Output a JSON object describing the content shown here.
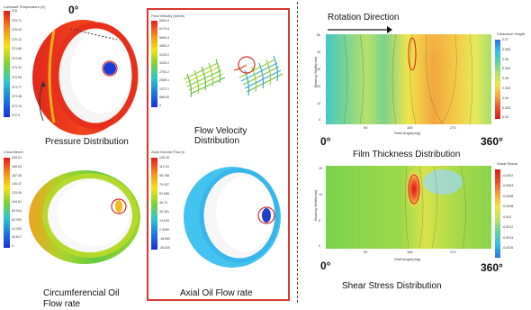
{
  "pressure": {
    "legend_title": "Lubricant Temperature (K)",
    "legend_values": [
      "376",
      "375.71",
      "375.42",
      "375.13",
      "374.86",
      "374.56",
      "374.31",
      "374.05",
      "373.77",
      "373.48",
      "373.19",
      "372.9"
    ],
    "zero_label": "0°",
    "caption": "Pressure Distribution"
  },
  "velocity": {
    "legend_title": "Flow Velocity (mm/s)",
    "legend_values": [
      "6500.0",
      "6174.4",
      "5694.4",
      "4953.2",
      "4193.2",
      "3439.2",
      "2751.2",
      "2089.1",
      "1372.1",
      "688.05",
      "0"
    ],
    "caption": "Flow Velocity Distribution"
  },
  "circumferential": {
    "legend_title": "Circumferen",
    "legend_values": [
      "208.01",
      "189.53",
      "167.05",
      "145.37",
      "125.09",
      "104.61",
      "83.034",
      "62.553",
      "41.303",
      "20.617",
      "0"
    ],
    "caption": "Circumferencial Oil Flow rate"
  },
  "axial": {
    "legend_title": "Axial Volume Flow (n",
    "legend_values": [
      "126.49",
      "112.15",
      "95.788",
      "79.437",
      "63.086",
      "46.74",
      "30.391",
      "14.043",
      "2.3060",
      "-18.650",
      "-35.000"
    ],
    "caption": "Axial Oil Flow rate"
  },
  "film": {
    "header": "Rotation Direction",
    "ylabel": "Bearing Width(mm)",
    "xlabel": "Shell Angle(deg)",
    "yticks": [
      "50",
      "40",
      "30",
      "20",
      "10",
      "0"
    ],
    "xticks": [
      "90",
      "180",
      "270"
    ],
    "cbar_title": "Clearance Height",
    "cbar_values": [
      "0.07",
      "0.065",
      "0.06",
      "0.055",
      "0.05",
      "0.045",
      "0.04",
      "0.035",
      "0.03"
    ],
    "start_label": "0°",
    "end_label": "360°",
    "caption": "Film Thickness Distribution"
  },
  "shear": {
    "ylabel": "Bearing Width(mm)",
    "xlabel": "Shell Angle(deg)",
    "yticks": [
      "15",
      "10",
      "5",
      "0"
    ],
    "xticks": [
      "90",
      "180",
      "270"
    ],
    "cbar_title": "Shear Stress",
    "cbar_values": [
      "-0.0002",
      "-0.0004",
      "-0.0006",
      "-0.0008",
      "-0.001",
      "-0.0012",
      "-0.0014",
      "-0.0016"
    ],
    "start_label": "0°",
    "end_label": "360°",
    "caption": "Shear Stress Distribution"
  },
  "colors": {
    "highlight_box": "#d9362e",
    "marker_circle": "#d42a2a",
    "divider": "#444444"
  }
}
